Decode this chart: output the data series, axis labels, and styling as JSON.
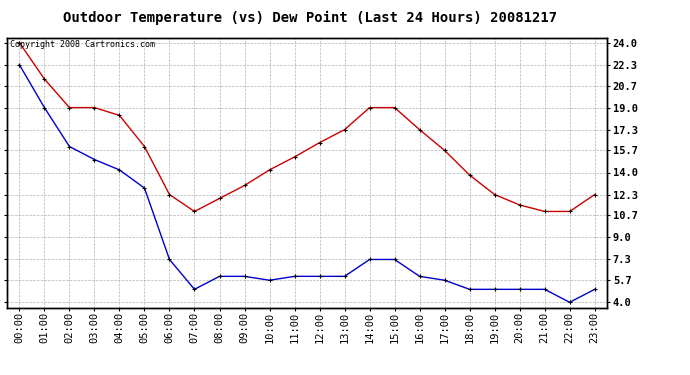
{
  "title": "Outdoor Temperature (vs) Dew Point (Last 24 Hours) 20081217",
  "copyright": "Copyright 2008 Cartronics.com",
  "hours": [
    "00:00",
    "01:00",
    "02:00",
    "03:00",
    "04:00",
    "05:00",
    "06:00",
    "07:00",
    "08:00",
    "09:00",
    "10:00",
    "11:00",
    "12:00",
    "13:00",
    "14:00",
    "15:00",
    "16:00",
    "17:00",
    "18:00",
    "19:00",
    "20:00",
    "21:00",
    "22:00",
    "23:00"
  ],
  "temp_red": [
    24.0,
    21.2,
    19.0,
    19.0,
    18.4,
    16.0,
    12.3,
    11.0,
    12.0,
    13.0,
    14.2,
    15.2,
    16.3,
    17.3,
    19.0,
    19.0,
    17.3,
    15.7,
    13.8,
    12.3,
    11.5,
    11.0,
    11.0,
    12.3
  ],
  "dew_blue": [
    22.3,
    19.0,
    16.0,
    15.0,
    14.2,
    12.8,
    7.3,
    5.0,
    6.0,
    6.0,
    5.7,
    6.0,
    6.0,
    6.0,
    7.3,
    7.3,
    6.0,
    5.7,
    5.0,
    5.0,
    5.0,
    5.0,
    4.0,
    5.0
  ],
  "yticks_right": [
    4.0,
    5.7,
    7.3,
    9.0,
    10.7,
    12.3,
    14.0,
    15.7,
    17.3,
    19.0,
    20.7,
    22.3,
    24.0
  ],
  "temp_color": "#cc0000",
  "dew_color": "#0000cc",
  "bg_color": "#ffffff",
  "plot_bg": "#ffffff",
  "grid_color": "#aaaaaa",
  "title_fontsize": 10,
  "copyright_fontsize": 6,
  "tick_fontsize": 7.5
}
